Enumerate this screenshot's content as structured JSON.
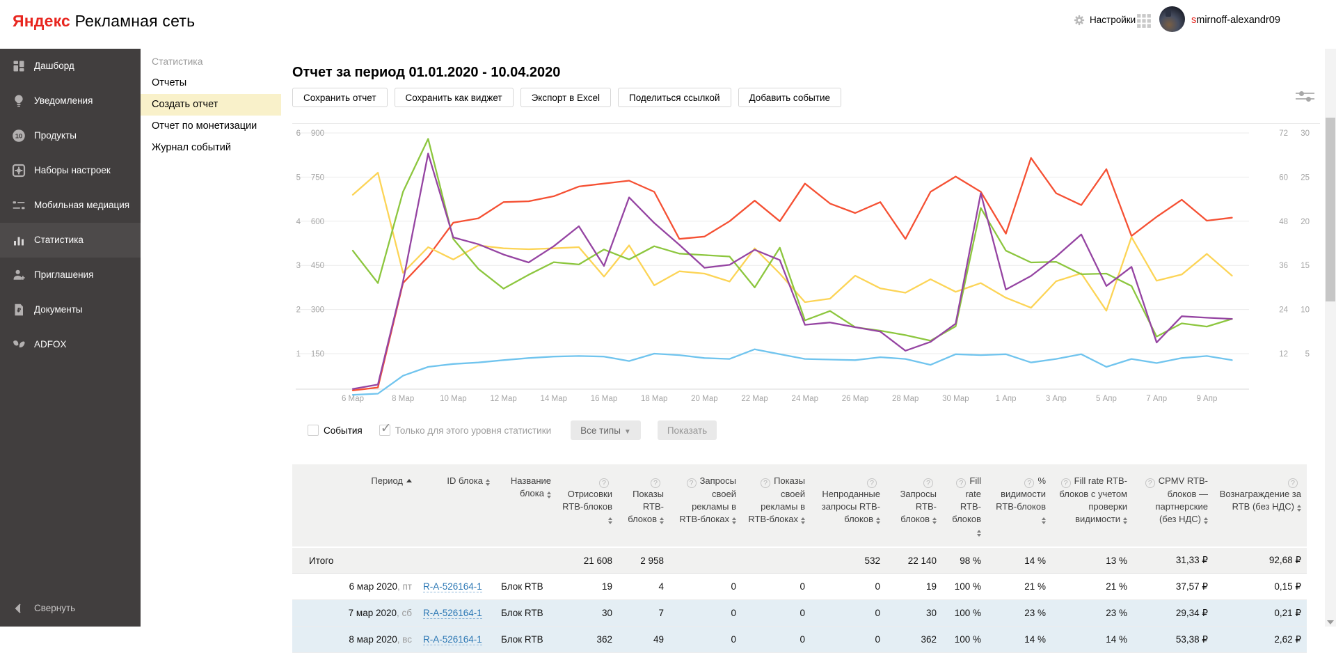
{
  "header": {
    "logo_primary": "Яндекс",
    "logo_secondary": " Рекламная сеть",
    "settings_label": "Настройки",
    "username_first": "s",
    "username_rest": "mirnoff-alexandr09"
  },
  "colors": {
    "brand_red": "#e8261f",
    "sidebar_bg": "#413e3e",
    "sidebar_active_bg": "#4d4a4a",
    "submenu_active_bg": "#f9f1ca",
    "link_blue": "#2b77b4",
    "weekend_row_bg": "#e4eef4",
    "table_header_bg": "#f1f1f0"
  },
  "sidebar": {
    "items": [
      {
        "id": "dashboard",
        "label": "Дашборд",
        "icon": "dashboard"
      },
      {
        "id": "notifications",
        "label": "Уведомления",
        "icon": "lightbulb"
      },
      {
        "id": "products",
        "label": "Продукты",
        "icon": "badge-count",
        "badge": "10"
      },
      {
        "id": "settings-sets",
        "label": "Наборы настроек",
        "icon": "gear-square"
      },
      {
        "id": "mobile-mediation",
        "label": "Мобильная медиация",
        "icon": "sliders"
      },
      {
        "id": "statistics",
        "label": "Статистика",
        "icon": "bar-chart",
        "active": true
      },
      {
        "id": "invitations",
        "label": "Приглашения",
        "icon": "user-plus"
      },
      {
        "id": "documents",
        "label": "Документы",
        "icon": "document-ruble"
      },
      {
        "id": "adfox",
        "label": "ADFOX",
        "icon": "adfox"
      }
    ],
    "collapse_label": "Свернуть"
  },
  "submenu": {
    "title": "Статистика",
    "items": [
      {
        "label": "Отчеты",
        "active": false
      },
      {
        "label": "Создать отчет",
        "active": true
      },
      {
        "label": "Отчет по монетизации",
        "active": false
      },
      {
        "label": "Журнал событий",
        "active": false
      }
    ]
  },
  "main": {
    "title": "Отчет за период 01.01.2020 - 10.04.2020",
    "buttons": [
      "Сохранить отчет",
      "Сохранить как виджет",
      "Экспорт в Excel",
      "Поделиться ссылкой",
      "Добавить событие"
    ]
  },
  "controls": {
    "events_label": "События",
    "events_checked": false,
    "scope_label": "Только для этого уровня статистики",
    "scope_checked": true,
    "type_dropdown_label": "Все типы",
    "show_button_label": "Показать"
  },
  "chart_data": {
    "type": "line",
    "title": "",
    "grid": true,
    "legend_position": "none",
    "value_scale_note": "all series values read against the inner-left axis (0–900); chart has 4 parallel axes",
    "axes": {
      "left_outer_ticks": [
        "6",
        "5",
        "4",
        "3",
        "2",
        "1"
      ],
      "left_inner_ticks": [
        "900",
        "750",
        "600",
        "450",
        "300",
        "150"
      ],
      "right_inner_ticks": [
        "72",
        "60",
        "48",
        "36",
        "24",
        "12"
      ],
      "right_outer_ticks": [
        "30",
        "25",
        "20",
        "15",
        "10",
        "5"
      ]
    },
    "x": [
      "6 мар",
      "7 мар",
      "8 мар",
      "9 мар",
      "10 мар",
      "11 мар",
      "12 мар",
      "13 мар",
      "14 мар",
      "15 мар",
      "16 мар",
      "17 мар",
      "18 мар",
      "19 мар",
      "20 мар",
      "21 мар",
      "22 мар",
      "23 мар",
      "24 мар",
      "25 мар",
      "26 мар",
      "27 мар",
      "28 мар",
      "29 мар",
      "30 мар",
      "31 мар",
      "1 апр",
      "2 апр",
      "3 апр",
      "4 апр",
      "5 апр",
      "6 апр",
      "7 апр",
      "8 апр",
      "9 апр",
      "10 апр"
    ],
    "x_tick_labels": [
      "6 Мар",
      "8 Мар",
      "10 Мар",
      "12 Мар",
      "14 Мар",
      "16 Мар",
      "18 Мар",
      "20 Мар",
      "22 Мар",
      "24 Мар",
      "26 Мар",
      "28 Мар",
      "30 Мар",
      "1 Апр",
      "3 Апр",
      "5 Апр",
      "7 Апр",
      "9 Апр"
    ],
    "series": [
      {
        "name": "series-orange",
        "color": "#f55033",
        "values": [
          25,
          35,
          390,
          480,
          595,
          610,
          665,
          668,
          685,
          718,
          728,
          738,
          700,
          540,
          548,
          600,
          670,
          600,
          728,
          660,
          628,
          665,
          540,
          700,
          752,
          700,
          558,
          815,
          695,
          655,
          777,
          550,
          615,
          673,
          602,
          612
        ]
      },
      {
        "name": "series-yellow",
        "color": "#fcd456",
        "values": [
          690,
          765,
          425,
          512,
          470,
          518,
          508,
          505,
          508,
          512,
          412,
          518,
          382,
          430,
          422,
          395,
          508,
          422,
          325,
          337,
          415,
          372,
          357,
          403,
          360,
          390,
          340,
          306,
          396,
          423,
          296,
          546,
          398,
          419,
          489,
          415
        ]
      },
      {
        "name": "series-green",
        "color": "#8cc63e",
        "values": [
          500,
          390,
          700,
          880,
          540,
          438,
          371,
          418,
          461,
          453,
          504,
          470,
          515,
          490,
          485,
          480,
          375,
          510,
          263,
          295,
          240,
          228,
          213,
          194,
          243,
          645,
          500,
          460,
          462,
          420,
          422,
          380,
          208,
          253,
          242,
          268
        ]
      },
      {
        "name": "series-purple",
        "color": "#9544a2",
        "values": [
          30,
          45,
          395,
          830,
          545,
          522,
          487,
          460,
          515,
          583,
          448,
          681,
          594,
          520,
          442,
          452,
          503,
          468,
          248,
          256,
          240,
          225,
          160,
          190,
          252,
          695,
          368,
          414,
          480,
          555,
          380,
          445,
          188,
          277,
          272,
          268
        ]
      },
      {
        "name": "series-blue",
        "color": "#70c4ee",
        "values": [
          10,
          14,
          75,
          105,
          115,
          120,
          128,
          135,
          140,
          142,
          140,
          125,
          150,
          145,
          135,
          132,
          165,
          148,
          132,
          130,
          128,
          138,
          132,
          112,
          148,
          145,
          148,
          120,
          132,
          148,
          105,
          132,
          118,
          135,
          142,
          128
        ]
      }
    ]
  },
  "table": {
    "columns": [
      {
        "label": "Период",
        "sort": "asc",
        "question": false
      },
      {
        "label": "ID блока",
        "sort": "both",
        "question": false
      },
      {
        "label": "Название блока",
        "sort": "both",
        "question": false
      },
      {
        "label": "Отрисовки RTB-блоков",
        "sort": "both",
        "question": true
      },
      {
        "label": "Показы RTB-блоков",
        "sort": "both",
        "question": true
      },
      {
        "label": "Запросы своей рекламы в RTB-блоках",
        "sort": "both",
        "question": true
      },
      {
        "label": "Показы своей рекламы в RTB-блоках",
        "sort": "both",
        "question": true
      },
      {
        "label": "Непроданные запросы RTB-блоков",
        "sort": "both",
        "question": true
      },
      {
        "label": "Запросы RTB-блоков",
        "sort": "both",
        "question": true
      },
      {
        "label": "Fill rate RTB-блоков",
        "sort": "both",
        "question": true
      },
      {
        "label": "% видимости RTB-блоков",
        "sort": "both",
        "question": true
      },
      {
        "label": "Fill rate RTB-блоков с учетом проверки видимости",
        "sort": "both",
        "question": true
      },
      {
        "label": "CPMV RTB-блоков — партнерские (без НДС)",
        "sort": "both",
        "question": true
      },
      {
        "label": "Вознаграждение за RTB (без НДС)",
        "sort": "both",
        "question": true
      }
    ],
    "total_row": [
      "Итого",
      "",
      "",
      "21 608",
      "2 958",
      "",
      "",
      "532",
      "22 140",
      "98 %",
      "14 %",
      "13 %",
      "31,33 ₽",
      "92,68 ₽"
    ],
    "rows": [
      {
        "date": "6 мар 2020",
        "weekday": "пт",
        "id": "R-A-526164-1",
        "block": "Блок RTB",
        "weekend": false,
        "values": [
          "19",
          "4",
          "0",
          "0",
          "0",
          "19",
          "100 %",
          "21 %",
          "21 %",
          "37,57 ₽",
          "0,15 ₽"
        ]
      },
      {
        "date": "7 мар 2020",
        "weekday": "сб",
        "id": "R-A-526164-1",
        "block": "Блок RTB",
        "weekend": true,
        "values": [
          "30",
          "7",
          "0",
          "0",
          "0",
          "30",
          "100 %",
          "23 %",
          "23 %",
          "29,34 ₽",
          "0,21 ₽"
        ]
      },
      {
        "date": "8 мар 2020",
        "weekday": "вс",
        "id": "R-A-526164-1",
        "block": "Блок RTB",
        "weekend": true,
        "values": [
          "362",
          "49",
          "0",
          "0",
          "0",
          "362",
          "100 %",
          "14 %",
          "14 %",
          "53,38 ₽",
          "2,62 ₽"
        ]
      }
    ]
  }
}
